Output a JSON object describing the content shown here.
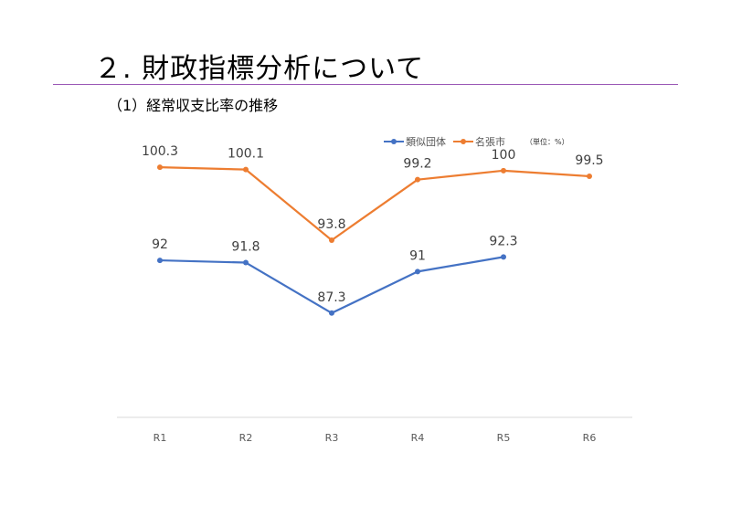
{
  "page": {
    "title": "２. 財政指標分析について",
    "subtitle": "（1）経常収支比率の推移"
  },
  "legend": {
    "unit": "（単位：%）"
  },
  "chart_data": {
    "type": "line",
    "categories": [
      "R1",
      "R2",
      "R3",
      "R4",
      "R5",
      "R6"
    ],
    "series": [
      {
        "name": "類似団体",
        "color": "#4472c4",
        "values": [
          92,
          91.8,
          87.3,
          91,
          92.3,
          null
        ]
      },
      {
        "name": "名張市",
        "color": "#ed7d31",
        "values": [
          100.3,
          100.1,
          93.8,
          99.2,
          100,
          99.5
        ]
      }
    ],
    "ylim": [
      78,
      103
    ],
    "grid": false,
    "legend_position": "top-right",
    "data_labels": true
  }
}
